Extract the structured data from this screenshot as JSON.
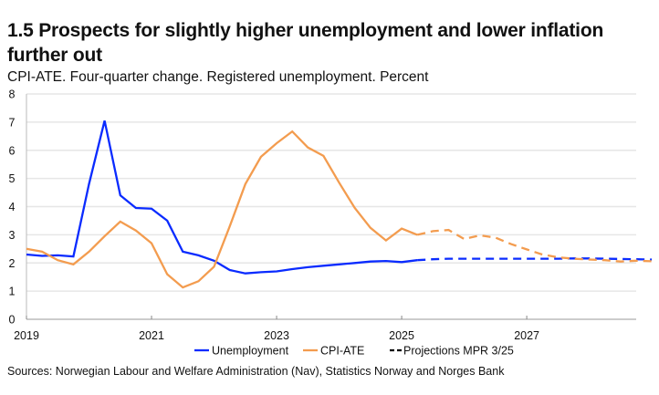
{
  "title": "1.5 Prospects for slightly higher unemployment and lower inflation further out",
  "subtitle": "CPI-ATE. Four-quarter change. Registered unemployment. Percent",
  "sources": "Sources: Norwegian Labour and Welfare Administration (Nav), Statistics Norway and Norges Bank",
  "chart_data": {
    "type": "line",
    "title": "1.5 Prospects for slightly higher unemployment and lower inflation further out",
    "xlabel": "",
    "ylabel": "",
    "ylim": [
      0,
      8
    ],
    "xlim": [
      2019,
      2028.75
    ],
    "yticks": [
      "0",
      "1",
      "2",
      "3",
      "4",
      "5",
      "6",
      "7",
      "8"
    ],
    "xticks": [
      "2019",
      "2021",
      "2023",
      "2025",
      "2027"
    ],
    "grid": true,
    "legend": "bottom",
    "x_start": 2019.0,
    "x_step_years": 0.25,
    "projection_start": 2025.25,
    "series": [
      {
        "name": "Unemployment",
        "color": "#0a2bff",
        "actual": [
          2.3,
          2.25,
          2.27,
          2.23,
          4.8,
          7.05,
          4.4,
          3.95,
          3.93,
          3.5,
          2.4,
          2.27,
          2.08,
          1.75,
          1.63,
          1.67,
          1.7,
          1.78,
          1.85,
          1.9,
          1.95,
          2.0,
          2.05,
          2.07,
          2.03,
          2.1
        ],
        "projection": [
          2.1,
          2.13,
          2.15,
          2.15,
          2.15,
          2.15,
          2.15,
          2.15,
          2.15,
          2.15,
          2.16,
          2.16,
          2.15,
          2.14,
          2.13,
          2.12
        ]
      },
      {
        "name": "CPI-ATE",
        "color": "#f39c4f",
        "actual": [
          2.5,
          2.4,
          2.1,
          1.95,
          2.4,
          2.95,
          3.47,
          3.15,
          2.7,
          1.6,
          1.13,
          1.35,
          1.87,
          3.3,
          4.8,
          5.77,
          6.25,
          6.67,
          6.1,
          5.8,
          4.85,
          3.95,
          3.25,
          2.8,
          3.22,
          3.0
        ],
        "projection": [
          3.0,
          3.13,
          3.17,
          2.85,
          2.98,
          2.9,
          2.67,
          2.48,
          2.3,
          2.2,
          2.15,
          2.12,
          2.1,
          2.05,
          2.08,
          2.06
        ]
      }
    ],
    "legend_entries": [
      {
        "label": "Unemployment",
        "color": "#0a2bff",
        "style": "solid"
      },
      {
        "label": "CPI-ATE",
        "color": "#f39c4f",
        "style": "solid"
      },
      {
        "label": "Projections MPR 3/25",
        "color": "#000000",
        "style": "dashed"
      }
    ]
  }
}
